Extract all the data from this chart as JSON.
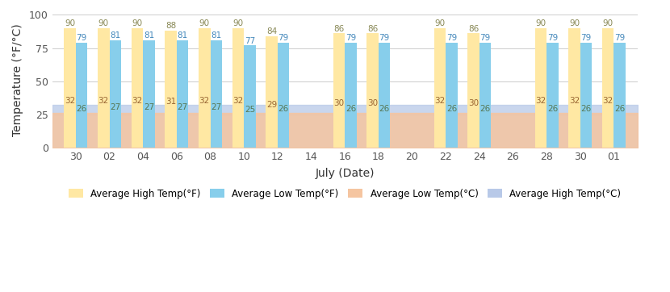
{
  "xlabel": "July (Date)",
  "ylabel": "Temperature (°F/°C)",
  "xtick_labels": [
    "30",
    "02",
    "04",
    "06",
    "08",
    "10",
    "12",
    "14",
    "16",
    "18",
    "20",
    "22",
    "24",
    "26",
    "28",
    "30",
    "01"
  ],
  "bar_positions_idx": [
    0,
    1,
    2,
    3,
    4,
    5,
    6,
    8,
    9,
    11,
    12,
    14,
    15,
    16
  ],
  "high_f": [
    90,
    90,
    90,
    88,
    90,
    90,
    84,
    86,
    86,
    90,
    86,
    90,
    90,
    90
  ],
  "low_f": [
    79,
    81,
    81,
    81,
    81,
    77,
    79,
    79,
    79,
    79,
    79,
    79,
    79,
    79
  ],
  "high_c": [
    32,
    32,
    32,
    31,
    32,
    32,
    29,
    30,
    30,
    32,
    30,
    32,
    32,
    32
  ],
  "low_c": [
    26,
    27,
    27,
    27,
    27,
    25,
    26,
    26,
    26,
    26,
    26,
    26,
    26,
    26
  ],
  "color_high_f": "#FFE8A3",
  "color_low_f": "#87CEEB",
  "color_high_c": "#B8C9E8",
  "color_low_c": "#F5C5A0",
  "ylim": [
    0,
    100
  ],
  "yticks": [
    0,
    25,
    50,
    75,
    100
  ],
  "label_color_hf": "#888855",
  "label_color_lf": "#4488BB",
  "label_color_hc": "#996633",
  "label_color_lc": "#557755",
  "grid_color": "#CCCCCC"
}
